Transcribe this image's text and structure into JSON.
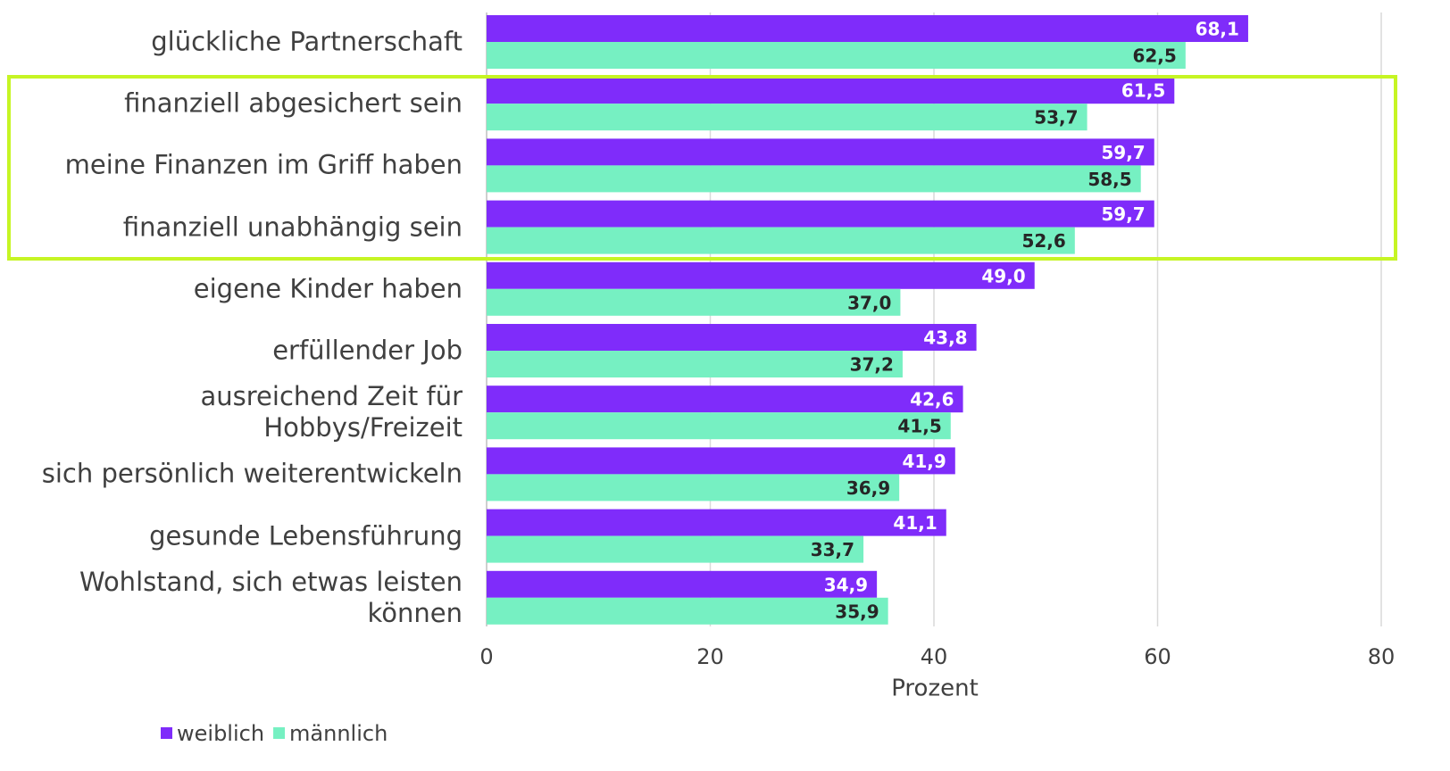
{
  "chart_data": {
    "type": "hbar",
    "categories": [
      "glückliche Partnerschaft",
      "finanziell abgesichert sein",
      "meine Finanzen im Griff haben",
      "finanziell unabhängig sein",
      "eigene Kinder haben",
      "erfüllender Job",
      "ausreichend Zeit für\nHobbys/Freizeit",
      "sich persönlich weiterentwickeln",
      "gesunde Lebensführung",
      "Wohlstand, sich etwas leisten\nkönnen"
    ],
    "series": [
      {
        "name": "weiblich",
        "color": "#7f2cfa",
        "values": [
          68.1,
          61.5,
          59.7,
          59.7,
          49.0,
          43.8,
          42.6,
          41.9,
          41.1,
          34.9
        ],
        "value_labels": [
          "68,1",
          "61,5",
          "59,7",
          "59,7",
          "49,0",
          "43,8",
          "42,6",
          "41,9",
          "41,1",
          "34,9"
        ]
      },
      {
        "name": "männlich",
        "color": "#76f0c2",
        "values": [
          62.5,
          53.7,
          58.5,
          52.6,
          37.0,
          37.2,
          41.5,
          36.9,
          33.7,
          35.9
        ],
        "value_labels": [
          "62,5",
          "53,7",
          "58,5",
          "52,6",
          "37,0",
          "37,2",
          "41,5",
          "36,9",
          "33,7",
          "35,9"
        ]
      }
    ],
    "xlabel": "Prozent",
    "xlim": [
      0,
      80
    ],
    "xticks": [
      0,
      20,
      40,
      60,
      80
    ],
    "grid": true
  }
}
